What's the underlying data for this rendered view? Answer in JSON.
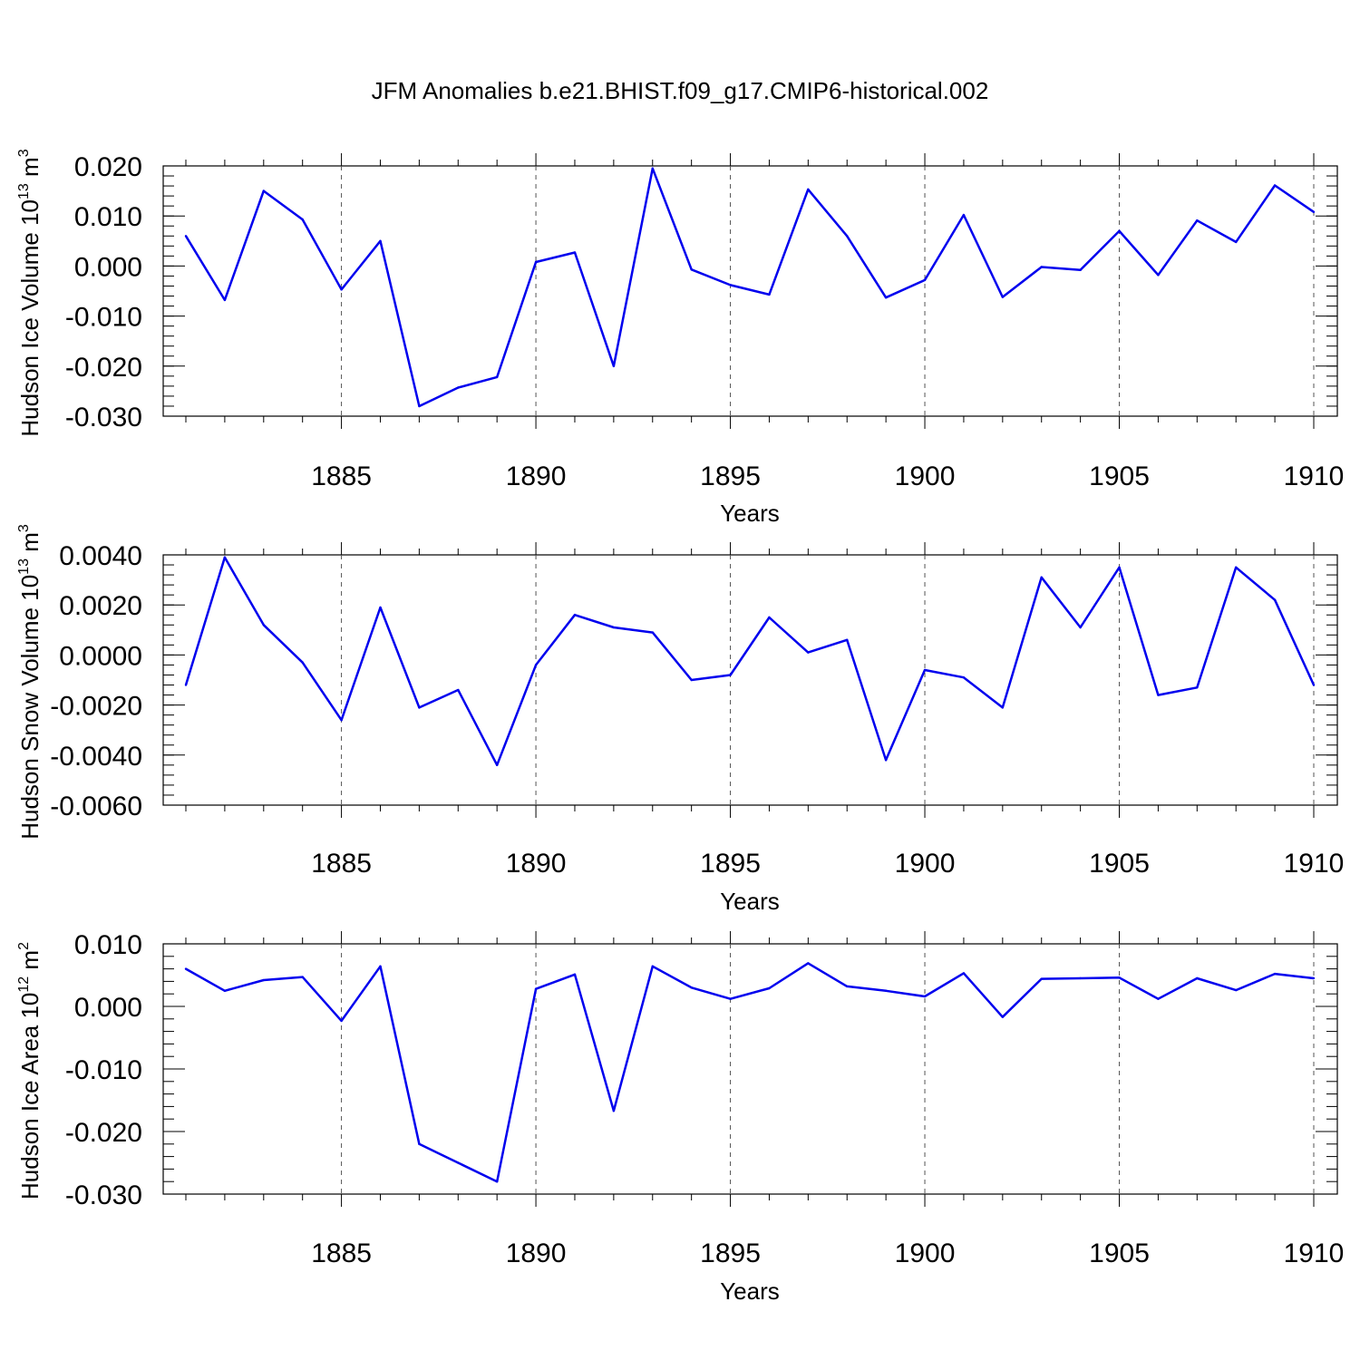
{
  "title": "JFM Anomalies b.e21.BHIST.f09_g17.CMIP6-historical.002",
  "chart_data": [
    {
      "type": "line",
      "id": "ice-volume",
      "ylabel": "Hudson Ice Volume 10",
      "ylabel_exp": "13",
      "ylabel_unit": " m",
      "ylabel_unit_exp": "3",
      "xlabel": "Years",
      "xlim": [
        1881,
        1910
      ],
      "ylim": [
        -0.03,
        0.02
      ],
      "ytick_values": [
        0.02,
        0.01,
        0.0,
        -0.01,
        -0.02,
        -0.03
      ],
      "ytick_labels": [
        "0.020",
        "0.010",
        "0.000",
        "-0.010",
        "-0.020",
        "-0.030"
      ],
      "yminor_step": 0.002,
      "xtick_values": [
        1885,
        1890,
        1895,
        1900,
        1905,
        1910
      ],
      "xtick_labels": [
        "1885",
        "1890",
        "1895",
        "1900",
        "1905",
        "1910"
      ],
      "color": "#0000ee",
      "series": [
        {
          "name": "Hudson Ice Volume",
          "x": [
            1881,
            1882,
            1883,
            1884,
            1885,
            1886,
            1887,
            1888,
            1889,
            1890,
            1891,
            1892,
            1893,
            1894,
            1895,
            1896,
            1897,
            1898,
            1899,
            1900,
            1901,
            1902,
            1903,
            1904,
            1905,
            1906,
            1907,
            1908,
            1909,
            1910
          ],
          "values": [
            0.006,
            -0.0068,
            0.015,
            0.0093,
            -0.0047,
            0.005,
            -0.028,
            -0.0243,
            -0.0222,
            0.0008,
            0.0027,
            -0.02,
            0.0195,
            -0.0007,
            -0.0038,
            -0.0057,
            0.0153,
            0.006,
            -0.0063,
            -0.0028,
            0.0102,
            -0.0062,
            -0.0002,
            -0.0008,
            0.007,
            -0.0018,
            0.0091,
            0.0048,
            0.0161,
            0.0108
          ]
        }
      ]
    },
    {
      "type": "line",
      "id": "snow-volume",
      "ylabel": "Hudson Snow Volume 10",
      "ylabel_exp": "13",
      "ylabel_unit": " m",
      "ylabel_unit_exp": "3",
      "xlabel": "Years",
      "xlim": [
        1881,
        1910
      ],
      "ylim": [
        -0.006,
        0.004
      ],
      "ytick_values": [
        0.004,
        0.002,
        0.0,
        -0.002,
        -0.004,
        -0.006
      ],
      "ytick_labels": [
        "0.0040",
        "0.0020",
        "0.0000",
        "-0.0020",
        "-0.0040",
        "-0.0060"
      ],
      "yminor_step": 0.0004,
      "xtick_values": [
        1885,
        1890,
        1895,
        1900,
        1905,
        1910
      ],
      "xtick_labels": [
        "1885",
        "1890",
        "1895",
        "1900",
        "1905",
        "1910"
      ],
      "color": "#0000ee",
      "series": [
        {
          "name": "Hudson Snow Volume",
          "x": [
            1881,
            1882,
            1883,
            1884,
            1885,
            1886,
            1887,
            1888,
            1889,
            1890,
            1891,
            1892,
            1893,
            1894,
            1895,
            1896,
            1897,
            1898,
            1899,
            1900,
            1901,
            1902,
            1903,
            1904,
            1905,
            1906,
            1907,
            1908,
            1909,
            1910
          ],
          "values": [
            -0.0012,
            0.0039,
            0.0012,
            -0.0003,
            -0.0026,
            0.0019,
            -0.0021,
            -0.0014,
            -0.0044,
            -0.0004,
            0.0016,
            0.0011,
            0.0009,
            -0.001,
            -0.0008,
            0.0015,
            0.0001,
            0.0006,
            -0.0042,
            -0.0006,
            -0.0009,
            -0.0021,
            0.0031,
            0.0011,
            0.0035,
            -0.0016,
            -0.0013,
            0.0035,
            0.0022,
            -0.0012
          ]
        }
      ]
    },
    {
      "type": "line",
      "id": "ice-area",
      "ylabel": "Hudson Ice Area 10",
      "ylabel_exp": "12",
      "ylabel_unit": " m",
      "ylabel_unit_exp": "2",
      "xlabel": "Years",
      "xlim": [
        1881,
        1910
      ],
      "ylim": [
        -0.03,
        0.01
      ],
      "ytick_values": [
        0.01,
        0.0,
        -0.01,
        -0.02,
        -0.03
      ],
      "ytick_labels": [
        "0.010",
        "0.000",
        "-0.010",
        "-0.020",
        "-0.030"
      ],
      "yminor_step": 0.002,
      "xtick_values": [
        1885,
        1890,
        1895,
        1900,
        1905,
        1910
      ],
      "xtick_labels": [
        "1885",
        "1890",
        "1895",
        "1900",
        "1905",
        "1910"
      ],
      "color": "#0000ee",
      "series": [
        {
          "name": "Hudson Ice Area",
          "x": [
            1881,
            1882,
            1883,
            1884,
            1885,
            1886,
            1887,
            1888,
            1889,
            1890,
            1891,
            1892,
            1893,
            1894,
            1895,
            1896,
            1897,
            1898,
            1899,
            1900,
            1901,
            1902,
            1903,
            1904,
            1905,
            1906,
            1907,
            1908,
            1909,
            1910
          ],
          "values": [
            0.006,
            0.0025,
            0.0042,
            0.0047,
            -0.0023,
            0.0064,
            -0.022,
            -0.025,
            -0.028,
            0.0028,
            0.0051,
            -0.0167,
            0.0064,
            0.003,
            0.0012,
            0.0029,
            0.0069,
            0.0032,
            0.0025,
            0.0016,
            0.0053,
            -0.0017,
            0.0044,
            0.0045,
            0.0046,
            0.0012,
            0.0045,
            0.0026,
            0.0052,
            0.0045
          ]
        }
      ]
    }
  ]
}
